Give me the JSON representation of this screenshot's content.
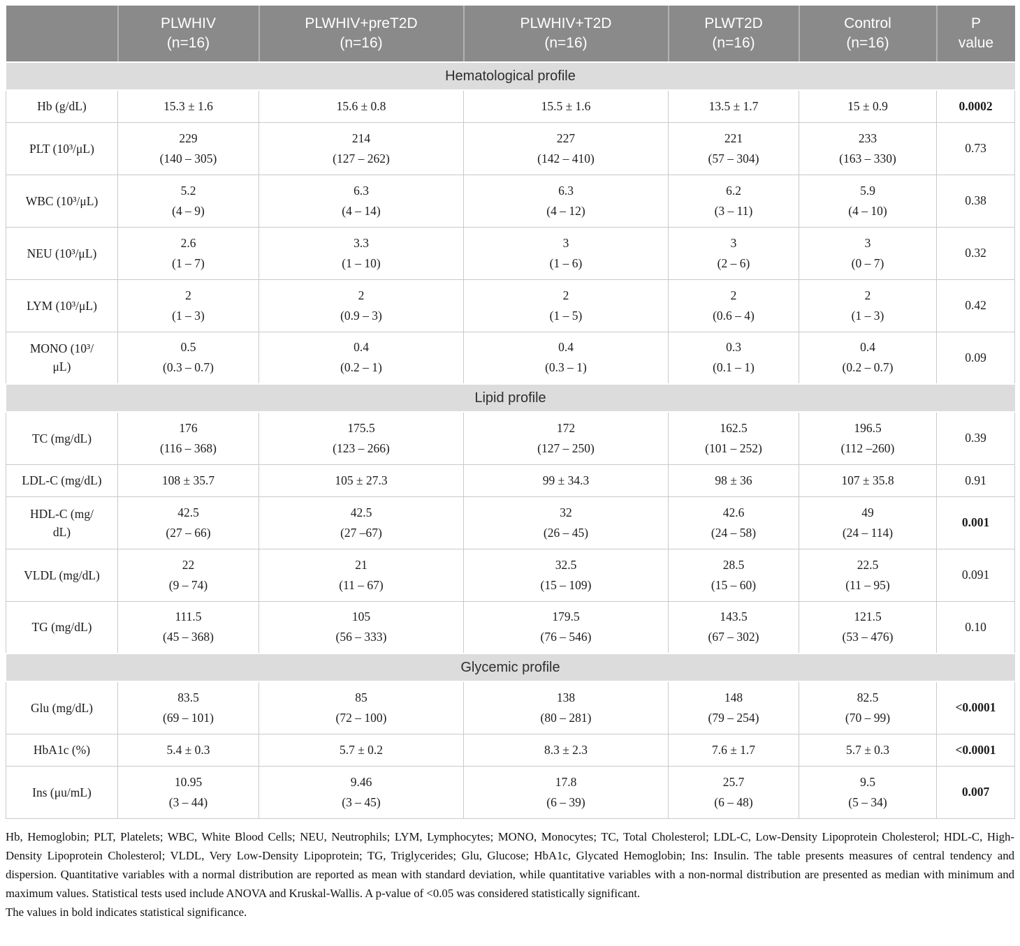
{
  "header": {
    "columns": [
      {
        "name": "",
        "n": ""
      },
      {
        "name": "PLWHIV",
        "n": "(n=16)"
      },
      {
        "name": "PLWHIV+preT2D",
        "n": "(n=16)"
      },
      {
        "name": "PLWHIV+T2D",
        "n": "(n=16)"
      },
      {
        "name": "PLWT2D",
        "n": "(n=16)"
      },
      {
        "name": "Control",
        "n": "(n=16)"
      },
      {
        "name": "P",
        "n": "value"
      }
    ]
  },
  "sections": [
    {
      "title": "Hematological profile",
      "rows": [
        {
          "label": [
            "Hb (g/dL)"
          ],
          "values": [
            [
              "15.3 ± 1.6"
            ],
            [
              "15.6 ± 0.8"
            ],
            [
              "15.5 ± 1.6"
            ],
            [
              "13.5 ± 1.7"
            ],
            [
              "15 ± 0.9"
            ]
          ],
          "p": "0.0002",
          "p_bold": true
        },
        {
          "label": [
            "PLT (10³/μL)"
          ],
          "values": [
            [
              "229",
              "(140 – 305)"
            ],
            [
              "214",
              "(127 – 262)"
            ],
            [
              "227",
              "(142 – 410)"
            ],
            [
              "221",
              "(57 – 304)"
            ],
            [
              "233",
              "(163 – 330)"
            ]
          ],
          "p": "0.73",
          "p_bold": false
        },
        {
          "label": [
            "WBC (10³/μL)"
          ],
          "values": [
            [
              "5.2",
              "(4 – 9)"
            ],
            [
              "6.3",
              "(4 – 14)"
            ],
            [
              "6.3",
              "(4 – 12)"
            ],
            [
              "6.2",
              "(3 – 11)"
            ],
            [
              "5.9",
              "(4 – 10)"
            ]
          ],
          "p": "0.38",
          "p_bold": false
        },
        {
          "label": [
            "NEU (10³/μL)"
          ],
          "values": [
            [
              "2.6",
              "(1 – 7)"
            ],
            [
              "3.3",
              "(1 – 10)"
            ],
            [
              "3",
              "(1 – 6)"
            ],
            [
              "3",
              "(2 – 6)"
            ],
            [
              "3",
              "(0 – 7)"
            ]
          ],
          "p": "0.32",
          "p_bold": false
        },
        {
          "label": [
            "LYM (10³/μL)"
          ],
          "values": [
            [
              "2",
              "(1 – 3)"
            ],
            [
              "2",
              "(0.9 – 3)"
            ],
            [
              "2",
              "(1 – 5)"
            ],
            [
              "2",
              "(0.6 – 4)"
            ],
            [
              "2",
              "(1 – 3)"
            ]
          ],
          "p": "0.42",
          "p_bold": false
        },
        {
          "label": [
            "MONO (10³/",
            "μL)"
          ],
          "values": [
            [
              "0.5",
              "(0.3 – 0.7)"
            ],
            [
              "0.4",
              "(0.2 – 1)"
            ],
            [
              "0.4",
              "(0.3 – 1)"
            ],
            [
              "0.3",
              "(0.1 – 1)"
            ],
            [
              "0.4",
              "(0.2 – 0.7)"
            ]
          ],
          "p": "0.09",
          "p_bold": false
        }
      ]
    },
    {
      "title": "Lipid profile",
      "rows": [
        {
          "label": [
            "TC (mg/dL)"
          ],
          "values": [
            [
              "176",
              "(116 – 368)"
            ],
            [
              "175.5",
              "(123 – 266)"
            ],
            [
              "172",
              "(127 – 250)"
            ],
            [
              "162.5",
              "(101 – 252)"
            ],
            [
              "196.5",
              "(112 –260)"
            ]
          ],
          "p": "0.39",
          "p_bold": false
        },
        {
          "label": [
            "LDL-C (mg/dL)"
          ],
          "values": [
            [
              "108 ± 35.7"
            ],
            [
              "105 ± 27.3"
            ],
            [
              "99 ± 34.3"
            ],
            [
              "98 ± 36"
            ],
            [
              "107 ± 35.8"
            ]
          ],
          "p": "0.91",
          "p_bold": false
        },
        {
          "label": [
            "HDL-C (mg/",
            "dL)"
          ],
          "values": [
            [
              "42.5",
              "(27 – 66)"
            ],
            [
              "42.5",
              "(27 –67)"
            ],
            [
              "32",
              "(26 – 45)"
            ],
            [
              "42.6",
              "(24 – 58)"
            ],
            [
              "49",
              "(24 – 114)"
            ]
          ],
          "p": "0.001",
          "p_bold": true
        },
        {
          "label": [
            "VLDL (mg/dL)"
          ],
          "values": [
            [
              "22",
              "(9 – 74)"
            ],
            [
              "21",
              "(11 – 67)"
            ],
            [
              "32.5",
              "(15 – 109)"
            ],
            [
              "28.5",
              "(15 – 60)"
            ],
            [
              "22.5",
              "(11 – 95)"
            ]
          ],
          "p": "0.091",
          "p_bold": false
        },
        {
          "label": [
            "TG (mg/dL)"
          ],
          "values": [
            [
              "111.5",
              "(45 – 368)"
            ],
            [
              "105",
              "(56 – 333)"
            ],
            [
              "179.5",
              "(76 – 546)"
            ],
            [
              "143.5",
              "(67 – 302)"
            ],
            [
              "121.5",
              "(53 – 476)"
            ]
          ],
          "p": "0.10",
          "p_bold": false
        }
      ]
    },
    {
      "title": "Glycemic profile",
      "rows": [
        {
          "label": [
            "Glu (mg/dL)"
          ],
          "values": [
            [
              "83.5",
              "(69 – 101)"
            ],
            [
              "85",
              "(72 – 100)"
            ],
            [
              "138",
              "(80 – 281)"
            ],
            [
              "148",
              "(79 – 254)"
            ],
            [
              "82.5",
              "(70 – 99)"
            ]
          ],
          "p": "<0.0001",
          "p_bold": true
        },
        {
          "label": [
            "HbA1c (%)"
          ],
          "values": [
            [
              "5.4 ± 0.3"
            ],
            [
              "5.7 ± 0.2"
            ],
            [
              "8.3 ± 2.3"
            ],
            [
              "7.6 ± 1.7"
            ],
            [
              "5.7 ± 0.3"
            ]
          ],
          "p": "<0.0001",
          "p_bold": true
        },
        {
          "label": [
            "Ins (μu/mL)"
          ],
          "values": [
            [
              "10.95",
              "(3 – 44)"
            ],
            [
              "9.46",
              "(3 – 45)"
            ],
            [
              "17.8",
              "(6 – 39)"
            ],
            [
              "25.7",
              "(6 – 48)"
            ],
            [
              "9.5",
              "(5 – 34)"
            ]
          ],
          "p": "0.007",
          "p_bold": true
        }
      ]
    }
  ],
  "footnote": {
    "abbreviations": "Hb, Hemoglobin; PLT, Platelets; WBC, White Blood Cells; NEU, Neutrophils; LYM, Lymphocytes; MONO, Monocytes; TC, Total Cholesterol; LDL-C, Low-Density Lipoprotein Cholesterol; HDL-C, High-Density Lipoprotein Cholesterol; VLDL, Very Low-Density Lipoprotein; TG, Triglycerides; Glu, Glucose; HbA1c, Glycated Hemoglobin; Ins: Insulin. The table presents measures of central tendency and dispersion. Quantitative variables with a normal distribution are reported as mean with standard deviation, while quantitative variables with a non-normal distribution are presented as median with minimum and maximum values. Statistical tests used include ANOVA and Kruskal-Wallis. A p-value of <0.05 was considered statistically significant.",
    "bold_note": "The values in bold indicates statistical significance."
  },
  "colors": {
    "header_bg": "#8a8a8a",
    "section_band_bg": "#dcdcdc",
    "cell_border": "#c9c9c9",
    "header_text": "#ffffff",
    "body_text": "#1c1c1c"
  }
}
